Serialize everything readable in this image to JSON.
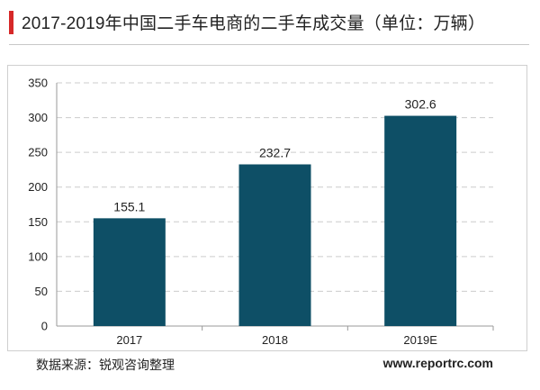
{
  "title": "2017-2019年中国二手车电商的二手车成交量（单位：万辆）",
  "source": "数据来源：锐观咨询整理",
  "website": "www.reportrc.com",
  "colors": {
    "bar": "#0e4f66",
    "accent": "#d62828",
    "grid": "#cccccc",
    "axis": "#999999",
    "text": "#222222"
  },
  "chart_data": {
    "type": "bar",
    "categories": [
      "2017",
      "2018",
      "2019E"
    ],
    "values": [
      155.1,
      232.7,
      302.6
    ],
    "data_labels": [
      "155.1",
      "232.7",
      "302.6"
    ],
    "title": "2017-2019年中国二手车电商的二手车成交量（单位：万辆）",
    "xlabel": "",
    "ylabel": "",
    "ylim": [
      0,
      350
    ],
    "yticks": [
      0,
      50,
      100,
      150,
      200,
      250,
      300,
      350
    ],
    "grid": true,
    "legend": "none"
  }
}
